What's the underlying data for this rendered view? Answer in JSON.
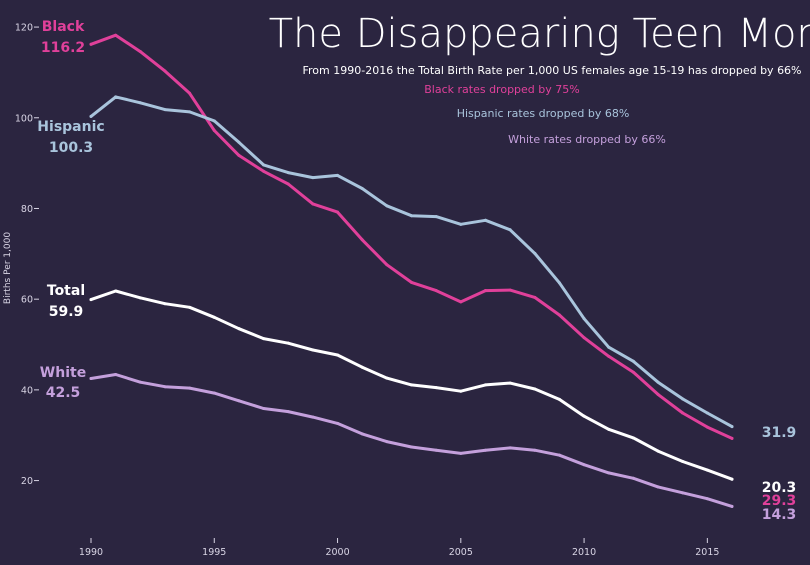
{
  "chart_data": {
    "type": "line",
    "title": "The Disappearing Teen Mom",
    "subtitle": "From 1990-2016 the Total Birth Rate per 1,000 US females age 15-19 has dropped by 66%",
    "annotations": [
      {
        "text": "Black rates dropped by 75%",
        "color": "#e0409a"
      },
      {
        "text": "Hispanic rates dropped by 68%",
        "color": "#a9c4dc"
      },
      {
        "text": "White rates dropped by 66%",
        "color": "#c4a0dc"
      }
    ],
    "xlabel": "",
    "ylabel": "Births Per 1,000",
    "xlim": [
      1989.2,
      1990.0
    ],
    "ylim": [
      8,
      122
    ],
    "x_ticks": [
      "1990",
      "1995",
      "2000",
      "2005",
      "2010",
      "2015"
    ],
    "y_ticks": [
      "20",
      "40",
      "60",
      "80",
      "100",
      "120"
    ],
    "grid": false,
    "x": [
      1990,
      1991,
      1992,
      1993,
      1994,
      1995,
      1996,
      1997,
      1998,
      1999,
      2000,
      2001,
      2002,
      2003,
      2004,
      2005,
      2006,
      2007,
      2008,
      2009,
      2010,
      2011,
      2012,
      2013,
      2014,
      2015,
      2016
    ],
    "series": [
      {
        "name": "Black",
        "color": "#e0409a",
        "start_label": "116.2",
        "end_label": "29.3",
        "values": [
          116.2,
          118.2,
          114.6,
          110.3,
          105.4,
          97.2,
          91.7,
          88.2,
          85.4,
          81.0,
          79.2,
          73.1,
          67.6,
          63.7,
          61.9,
          59.4,
          61.9,
          62.0,
          60.4,
          56.5,
          51.5,
          47.4,
          43.9,
          39.0,
          34.9,
          31.8,
          29.3
        ]
      },
      {
        "name": "Hispanic",
        "color": "#a9c4dc",
        "start_label": "100.3",
        "end_label": "31.9",
        "values": [
          100.3,
          104.6,
          103.3,
          101.8,
          101.3,
          99.3,
          94.6,
          89.6,
          87.9,
          86.8,
          87.3,
          84.4,
          80.6,
          78.4,
          78.2,
          76.5,
          77.4,
          75.3,
          70.1,
          63.6,
          55.7,
          49.4,
          46.3,
          41.7,
          38.0,
          34.9,
          31.9
        ]
      },
      {
        "name": "Total",
        "color": "#ffffff",
        "start_label": "59.9",
        "end_label": "20.3",
        "values": [
          59.9,
          61.8,
          60.3,
          59.0,
          58.2,
          56.0,
          53.5,
          51.3,
          50.3,
          48.8,
          47.7,
          45.0,
          42.6,
          41.1,
          40.5,
          39.7,
          41.1,
          41.5,
          40.2,
          37.9,
          34.2,
          31.3,
          29.4,
          26.5,
          24.2,
          22.3,
          20.3
        ]
      },
      {
        "name": "White",
        "color": "#c4a0dc",
        "start_label": "42.5",
        "end_label": "14.3",
        "values": [
          42.5,
          43.4,
          41.7,
          40.7,
          40.4,
          39.3,
          37.6,
          35.9,
          35.2,
          34.0,
          32.6,
          30.3,
          28.6,
          27.4,
          26.7,
          26.0,
          26.7,
          27.2,
          26.7,
          25.6,
          23.5,
          21.7,
          20.5,
          18.6,
          17.3,
          16.0,
          14.3
        ]
      }
    ]
  }
}
